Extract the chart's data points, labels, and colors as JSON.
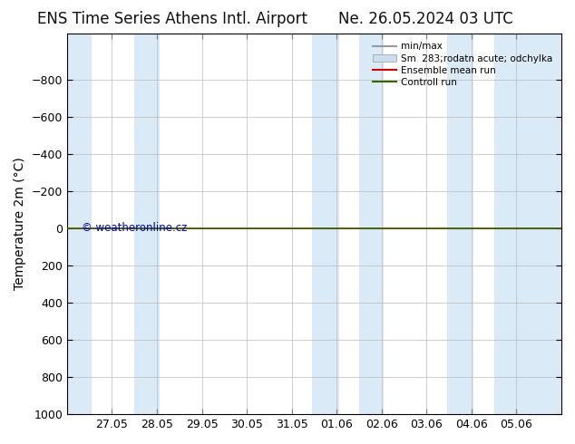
{
  "title_left": "ENS Time Series Athens Intl. Airport",
  "title_right": "Ne. 26.05.2024 03 UTC",
  "ylabel": "Temperature 2m (°C)",
  "ylim_bottom": 1000,
  "ylim_top": -1050,
  "yticks": [
    -800,
    -600,
    -400,
    -200,
    0,
    200,
    400,
    600,
    800,
    1000
  ],
  "x_tick_labels": [
    "27.05",
    "28.05",
    "29.05",
    "30.05",
    "31.05",
    "01.06",
    "02.06",
    "03.06",
    "04.06",
    "05.06"
  ],
  "x_tick_positions": [
    0,
    1,
    2,
    3,
    4,
    5,
    6,
    7,
    8,
    9
  ],
  "shade_color": "#daeaf7",
  "bg_color": "#ffffff",
  "plot_bg_color": "#ffffff",
  "green_line_y": 0,
  "green_line_color": "#336600",
  "red_line_color": "#cc0000",
  "legend_labels": [
    "min/max",
    "Sm  283;rodatn acute; odchylka",
    "Ensemble mean run",
    "Controll run"
  ],
  "watermark": "© weatheronline.cz",
  "watermark_color": "#0000bb",
  "title_fontsize": 12,
  "axis_label_fontsize": 10,
  "tick_fontsize": 9
}
